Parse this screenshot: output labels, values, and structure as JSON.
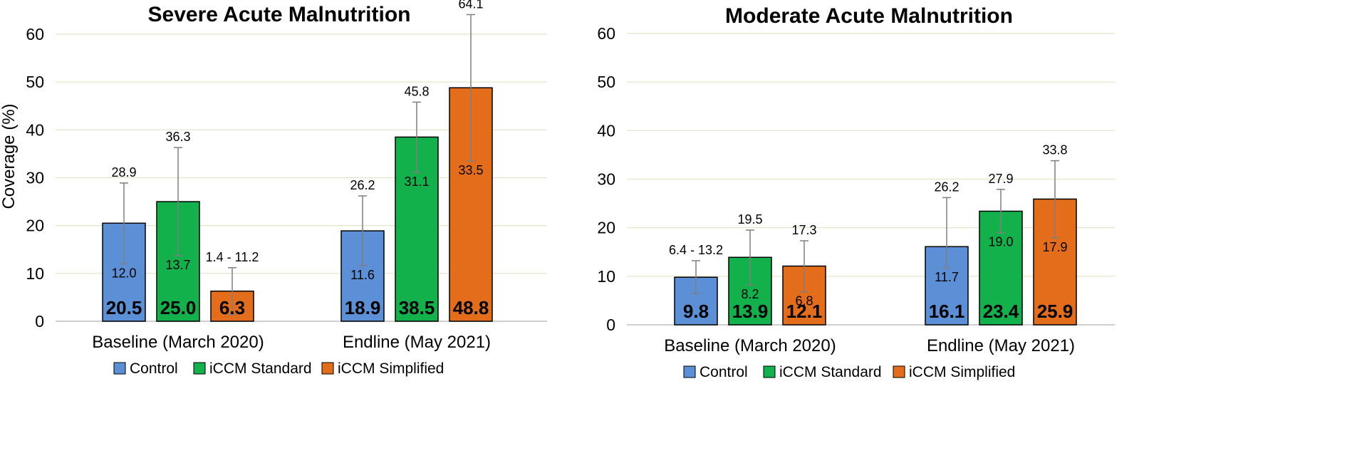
{
  "chart_data": [
    {
      "type": "bar",
      "title": "Severe Acute Malnutrition",
      "ylabel": "Coverage (%)",
      "xlabel": "",
      "ylim": [
        0,
        60
      ],
      "yticks": [
        "0",
        "10",
        "20",
        "30",
        "40",
        "50",
        "60"
      ],
      "categories": [
        "Baseline (March 2020)",
        "Endline (May 2021)"
      ],
      "legend_position": "bottom",
      "grid": true,
      "series": [
        {
          "name": "Control",
          "color": "#5B8FD6",
          "values": [
            20.5,
            18.9
          ],
          "labels": [
            "20.5",
            "18.9"
          ],
          "ci_low": [
            12.0,
            11.6
          ],
          "ci_high": [
            28.9,
            26.2
          ],
          "low_labels": [
            "12.0",
            "11.6"
          ],
          "high_labels": [
            "28.9",
            "26.2"
          ]
        },
        {
          "name": "iCCM Standard",
          "color": "#13B14B",
          "values": [
            25.0,
            38.5
          ],
          "labels": [
            "25.0",
            "38.5"
          ],
          "ci_low": [
            13.7,
            31.1
          ],
          "ci_high": [
            36.3,
            45.8
          ],
          "low_labels": [
            "13.7",
            "31.1"
          ],
          "high_labels": [
            "36.3",
            "45.8"
          ]
        },
        {
          "name": "iCCM Simplified",
          "color": "#E46D1B",
          "values": [
            6.3,
            48.8
          ],
          "labels": [
            "6.3",
            "48.8"
          ],
          "ci_low": [
            1.4,
            33.5
          ],
          "ci_high": [
            11.2,
            64.1
          ],
          "low_labels": [
            "",
            "33.5"
          ],
          "high_labels": [
            "1.4 - 11.2",
            "64.1"
          ]
        }
      ]
    },
    {
      "type": "bar",
      "title": "Moderate Acute Malnutrition",
      "ylabel": "",
      "xlabel": "",
      "ylim": [
        0,
        60
      ],
      "yticks": [
        "0",
        "10",
        "20",
        "30",
        "40",
        "50",
        "60"
      ],
      "categories": [
        "Baseline (March 2020)",
        "Endline (May 2021)"
      ],
      "legend_position": "bottom",
      "grid": true,
      "series": [
        {
          "name": "Control",
          "color": "#5B8FD6",
          "values": [
            9.8,
            16.1
          ],
          "labels": [
            "9.8",
            "16.1"
          ],
          "ci_low": [
            6.4,
            11.7
          ],
          "ci_high": [
            13.2,
            26.2
          ],
          "low_labels": [
            "",
            "11.7"
          ],
          "high_labels": [
            "6.4 - 13.2",
            "26.2"
          ]
        },
        {
          "name": "iCCM Standard",
          "color": "#13B14B",
          "values": [
            13.9,
            23.4
          ],
          "labels": [
            "13.9",
            "23.4"
          ],
          "ci_low": [
            8.2,
            19.0
          ],
          "ci_high": [
            19.5,
            27.9
          ],
          "low_labels": [
            "8.2",
            "19.0"
          ],
          "high_labels": [
            "19.5",
            "27.9"
          ]
        },
        {
          "name": "iCCM Simplified",
          "color": "#E46D1B",
          "values": [
            12.1,
            25.9
          ],
          "labels": [
            "12.1",
            "25.9"
          ],
          "ci_low": [
            6.8,
            17.9
          ],
          "ci_high": [
            17.3,
            33.8
          ],
          "low_labels": [
            "6.8",
            "17.9"
          ],
          "high_labels": [
            "17.3",
            "33.8"
          ]
        }
      ]
    }
  ]
}
